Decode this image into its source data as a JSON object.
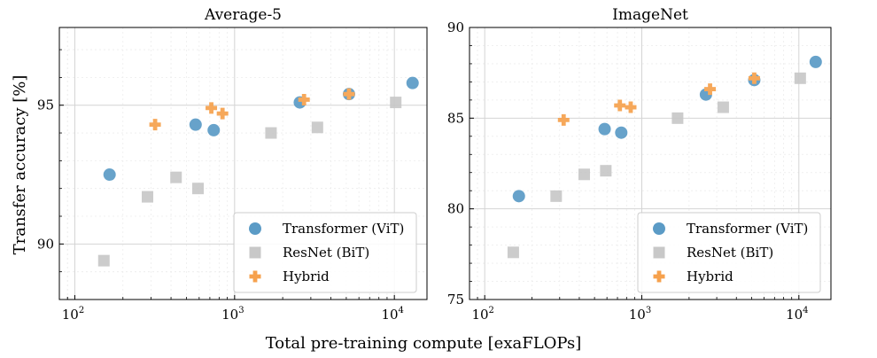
{
  "figure": {
    "ylabel": "Transfer accuracy [%]",
    "xlabel": "Total pre-training compute [exaFLOPs]"
  },
  "chart_data": [
    {
      "type": "scatter",
      "title": "Average-5",
      "xscale": "log",
      "xlim": [
        80,
        16000
      ],
      "ylim": [
        88,
        97.8
      ],
      "xticks": [
        100,
        1000,
        10000
      ],
      "xtick_labels": [
        "10^2",
        "10^3",
        "10^4"
      ],
      "yticks": [
        90,
        95
      ],
      "grid": true,
      "legend": "lower-right",
      "series": [
        {
          "name": "Transformer (ViT)",
          "marker": "circle",
          "color": "#5b9bc6",
          "points": [
            [
              165,
              92.5
            ],
            [
              570,
              94.3
            ],
            [
              740,
              94.1
            ],
            [
              2560,
              95.1
            ],
            [
              5200,
              95.4
            ],
            [
              13000,
              95.8
            ]
          ]
        },
        {
          "name": "ResNet (BiT)",
          "marker": "square",
          "color": "#c8c8c8",
          "points": [
            [
              152,
              89.4
            ],
            [
              285,
              91.7
            ],
            [
              430,
              92.4
            ],
            [
              590,
              92.0
            ],
            [
              1690,
              94.0
            ],
            [
              3300,
              94.2
            ],
            [
              10200,
              95.1
            ]
          ]
        },
        {
          "name": "Hybrid",
          "marker": "plus",
          "color": "#f6a14d",
          "points": [
            [
              318,
              94.3
            ],
            [
              715,
              94.9
            ],
            [
              840,
              94.7
            ],
            [
              2720,
              95.2
            ],
            [
              5200,
              95.4
            ]
          ]
        }
      ]
    },
    {
      "type": "scatter",
      "title": "ImageNet",
      "xscale": "log",
      "xlim": [
        80,
        16000
      ],
      "ylim": [
        75,
        90
      ],
      "xticks": [
        100,
        1000,
        10000
      ],
      "xtick_labels": [
        "10^2",
        "10^3",
        "10^4"
      ],
      "yticks": [
        75,
        80,
        85,
        90
      ],
      "grid": true,
      "legend": "lower-right",
      "series": [
        {
          "name": "Transformer (ViT)",
          "marker": "circle",
          "color": "#5b9bc6",
          "points": [
            [
              165,
              80.7
            ],
            [
              580,
              84.4
            ],
            [
              740,
              84.2
            ],
            [
              2560,
              86.3
            ],
            [
              5200,
              87.1
            ],
            [
              12800,
              88.1
            ]
          ]
        },
        {
          "name": "ResNet (BiT)",
          "marker": "square",
          "color": "#c8c8c8",
          "points": [
            [
              152,
              77.6
            ],
            [
              285,
              80.7
            ],
            [
              430,
              81.9
            ],
            [
              590,
              82.1
            ],
            [
              1690,
              85.0
            ],
            [
              3300,
              85.6
            ],
            [
              10200,
              87.2
            ]
          ]
        },
        {
          "name": "Hybrid",
          "marker": "plus",
          "color": "#f6a14d",
          "points": [
            [
              318,
              84.9
            ],
            [
              725,
              85.7
            ],
            [
              850,
              85.6
            ],
            [
              2720,
              86.6
            ],
            [
              5200,
              87.2
            ]
          ]
        }
      ]
    }
  ]
}
